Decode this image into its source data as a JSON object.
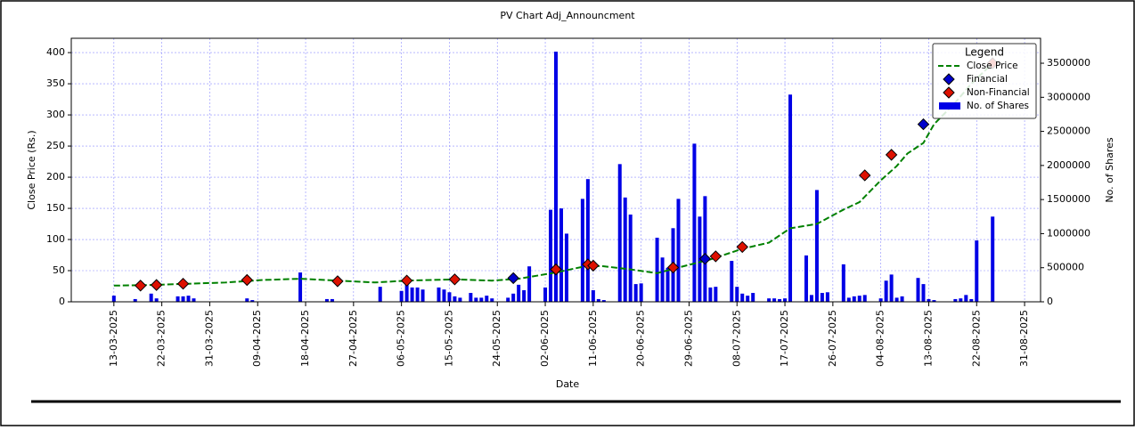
{
  "chart_data": {
    "type": "combo",
    "title": "PV Chart Adj_Announcment",
    "xlabel": "Date",
    "ylabel": "Close Price (Rs.)",
    "y2label": "No. of Shares",
    "legend_title": "Legend",
    "legend": "upper right",
    "grid": true,
    "xlim": [
      "05-03-2025",
      "03-09-2025"
    ],
    "xticks": [
      "13-03-2025",
      "22-03-2025",
      "31-03-2025",
      "09-04-2025",
      "18-04-2025",
      "27-04-2025",
      "06-05-2025",
      "15-05-2025",
      "24-05-2025",
      "02-06-2025",
      "11-06-2025",
      "20-06-2025",
      "29-06-2025",
      "08-07-2025",
      "17-07-2025",
      "26-07-2025",
      "04-08-2025",
      "13-08-2025",
      "22-08-2025",
      "31-08-2025"
    ],
    "ylim": [
      0,
      423
    ],
    "yticks": [
      0,
      50,
      100,
      150,
      200,
      250,
      300,
      350,
      400
    ],
    "y2lim": [
      0,
      3866000
    ],
    "y2ticks": [
      0,
      500000,
      1000000,
      1500000,
      2000000,
      2500000,
      3000000,
      3500000
    ],
    "series": [
      {
        "name": "Close Price",
        "type": "line",
        "color": "#008000",
        "x": [
          "13-03-2025",
          "20-03-2025",
          "27-03-2025",
          "03-04-2025",
          "10-04-2025",
          "17-04-2025",
          "24-04-2025",
          "01-05-2025",
          "07-05-2025",
          "16-05-2025",
          "23-05-2025",
          "28-05-2025",
          "04-06-2025",
          "10-06-2025",
          "13-06-2025",
          "18-06-2025",
          "23-06-2025",
          "27-06-2025",
          "03-07-2025",
          "09-07-2025",
          "14-07-2025",
          "18-07-2025",
          "23-07-2025",
          "28-07-2025",
          "31-07-2025",
          "04-08-2025",
          "07-08-2025",
          "09-08-2025",
          "12-08-2025",
          "14-08-2025",
          "18-08-2025",
          "21-08-2025",
          "25-08-2025"
        ],
        "values": [
          26,
          27,
          29,
          31,
          35,
          37,
          34,
          31,
          34,
          36,
          34,
          37,
          47,
          58,
          57,
          52,
          46,
          55,
          68,
          85,
          95,
          118,
          125,
          148,
          160,
          195,
          218,
          238,
          255,
          285,
          320,
          350,
          383
        ]
      },
      {
        "name": "Financial",
        "type": "scatter",
        "color": "#0000cc",
        "x": [
          "27-05-2025",
          "04-06-2025",
          "02-07-2025",
          "12-08-2025"
        ],
        "values": [
          38,
          52,
          69,
          285
        ]
      },
      {
        "name": "Non-Financial",
        "type": "scatter",
        "color": "#dd1100",
        "x": [
          "18-03-2025",
          "21-03-2025",
          "26-03-2025",
          "07-04-2025",
          "24-04-2025",
          "07-05-2025",
          "16-05-2025",
          "04-06-2025",
          "10-06-2025",
          "11-06-2025",
          "26-06-2025",
          "04-07-2025",
          "09-07-2025",
          "01-08-2025",
          "06-08-2025",
          "25-08-2025"
        ],
        "values": [
          26,
          27,
          29,
          35,
          33,
          34,
          36,
          52,
          60,
          58,
          55,
          73,
          88,
          203,
          236,
          383
        ]
      },
      {
        "name": "No. of Shares",
        "type": "bar",
        "color": "#0000e6",
        "axis": "y2",
        "x": [
          "13-03-2025",
          "17-03-2025",
          "20-03-2025",
          "21-03-2025",
          "25-03-2025",
          "26-03-2025",
          "27-03-2025",
          "28-03-2025",
          "07-04-2025",
          "08-04-2025",
          "17-04-2025",
          "22-04-2025",
          "23-04-2025",
          "02-05-2025",
          "06-05-2025",
          "07-05-2025",
          "08-05-2025",
          "09-05-2025",
          "10-05-2025",
          "13-05-2025",
          "14-05-2025",
          "15-05-2025",
          "16-05-2025",
          "17-05-2025",
          "19-05-2025",
          "20-05-2025",
          "21-05-2025",
          "22-05-2025",
          "23-05-2025",
          "26-05-2025",
          "27-05-2025",
          "28-05-2025",
          "29-05-2025",
          "30-05-2025",
          "02-06-2025",
          "03-06-2025",
          "04-06-2025",
          "05-06-2025",
          "06-06-2025",
          "09-06-2025",
          "10-06-2025",
          "11-06-2025",
          "12-06-2025",
          "13-06-2025",
          "16-06-2025",
          "17-06-2025",
          "18-06-2025",
          "19-06-2025",
          "20-06-2025",
          "23-06-2025",
          "24-06-2025",
          "25-06-2025",
          "26-06-2025",
          "27-06-2025",
          "30-06-2025",
          "01-07-2025",
          "02-07-2025",
          "03-07-2025",
          "04-07-2025",
          "07-07-2025",
          "08-07-2025",
          "09-07-2025",
          "10-07-2025",
          "11-07-2025",
          "14-07-2025",
          "15-07-2025",
          "16-07-2025",
          "17-07-2025",
          "18-07-2025",
          "21-07-2025",
          "22-07-2025",
          "23-07-2025",
          "24-07-2025",
          "25-07-2025",
          "28-07-2025",
          "29-07-2025",
          "30-07-2025",
          "31-07-2025",
          "01-08-2025",
          "04-08-2025",
          "05-08-2025",
          "06-08-2025",
          "07-08-2025",
          "08-08-2025",
          "11-08-2025",
          "12-08-2025",
          "13-08-2025",
          "14-08-2025",
          "18-08-2025",
          "19-08-2025",
          "20-08-2025",
          "21-08-2025",
          "22-08-2025",
          "25-08-2025"
        ],
        "values": [
          90000,
          40000,
          120000,
          50000,
          80000,
          80000,
          90000,
          50000,
          50000,
          25000,
          430000,
          40000,
          40000,
          220000,
          160000,
          290000,
          210000,
          210000,
          180000,
          210000,
          180000,
          140000,
          80000,
          60000,
          130000,
          60000,
          60000,
          90000,
          50000,
          60000,
          120000,
          250000,
          170000,
          520000,
          210000,
          1350000,
          3670000,
          1370000,
          1000000,
          1510000,
          1800000,
          170000,
          40000,
          25000,
          2020000,
          1530000,
          1280000,
          260000,
          270000,
          940000,
          650000,
          500000,
          1080000,
          1510000,
          2320000,
          1250000,
          1550000,
          210000,
          220000,
          600000,
          220000,
          120000,
          90000,
          130000,
          50000,
          50000,
          40000,
          50000,
          3040000,
          680000,
          100000,
          1640000,
          130000,
          140000,
          550000,
          60000,
          80000,
          90000,
          100000,
          50000,
          310000,
          400000,
          60000,
          80000,
          350000,
          260000,
          40000,
          25000,
          40000,
          50000,
          100000,
          40000,
          900000,
          1250000
        ]
      }
    ]
  }
}
